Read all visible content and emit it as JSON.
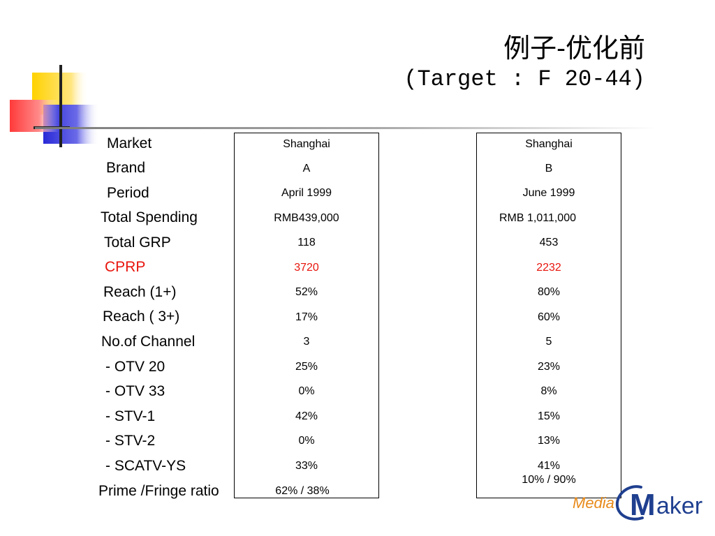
{
  "title": {
    "line1": "例子-优化前",
    "line2": "(Target : F 20-44)"
  },
  "row_labels": [
    "Market",
    "Brand",
    "Period",
    "Total Spending",
    "Total GRP",
    "CPRP",
    "Reach (1+)",
    "Reach ( 3+)",
    "No.of Channel",
    "- OTV 20",
    "- OTV 33",
    "- STV-1",
    "- STV-2",
    "- SCATV-YS",
    "Prime /Fringe ratio"
  ],
  "column_a": [
    "Shanghai",
    "A",
    "April 1999",
    "RMB439,000",
    "118",
    "3720",
    "52%",
    "17%",
    "3",
    "25%",
    "0%",
    "42%",
    "0%",
    "33%",
    "62% / 38%"
  ],
  "column_b": [
    "Shanghai",
    "B",
    "June 1999",
    "RMB 1,011,000",
    "453",
    "2232",
    "80%",
    "60%",
    "5",
    "23%",
    "8%",
    "15%",
    "13%",
    "41%",
    "10% / 90%"
  ],
  "logo": {
    "part1": "Media",
    "part2": "M",
    "part3": "aker"
  },
  "colors": {
    "highlight_red": "#e8140c",
    "deco_yellow": "#ffd200",
    "deco_blue": "#2a2ad8",
    "deco_red": "#ff3a3a",
    "logo_orange": "#e88a1a",
    "logo_navy": "#1f3f8f"
  }
}
